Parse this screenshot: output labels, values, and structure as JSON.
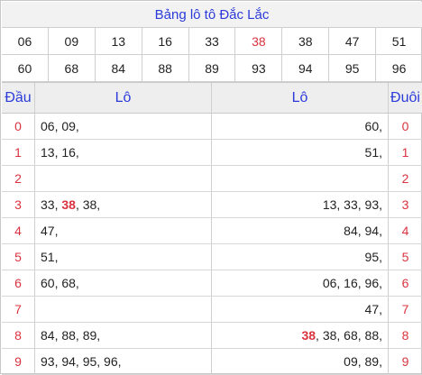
{
  "title": "Bảng lô tô Đắc Lắc",
  "numbers_row1": [
    "06",
    "09",
    "13",
    "16",
    "33",
    "38",
    "38",
    "47",
    "51"
  ],
  "numbers_row1_highlight_index": 5,
  "numbers_row2": [
    "60",
    "68",
    "84",
    "88",
    "89",
    "93",
    "94",
    "95",
    "96"
  ],
  "header": {
    "dau": "Đầu",
    "lo_left": "Lô",
    "lo_right": "Lô",
    "duoi": "Đuôi"
  },
  "rows": [
    {
      "dau": "0",
      "left": [
        {
          "t": "06, 09,"
        }
      ],
      "right": [
        {
          "t": "60,"
        }
      ],
      "duoi": "0"
    },
    {
      "dau": "1",
      "left": [
        {
          "t": "13, 16,"
        }
      ],
      "right": [
        {
          "t": "51,"
        }
      ],
      "duoi": "1"
    },
    {
      "dau": "2",
      "left": [],
      "right": [],
      "duoi": "2"
    },
    {
      "dau": "3",
      "left": [
        {
          "t": "33, "
        },
        {
          "t": "38",
          "hl": true
        },
        {
          "t": ", 38,"
        }
      ],
      "right": [
        {
          "t": "13, 33, 93,"
        }
      ],
      "duoi": "3"
    },
    {
      "dau": "4",
      "left": [
        {
          "t": "47,"
        }
      ],
      "right": [
        {
          "t": "84, 94,"
        }
      ],
      "duoi": "4"
    },
    {
      "dau": "5",
      "left": [
        {
          "t": "51,"
        }
      ],
      "right": [
        {
          "t": "95,"
        }
      ],
      "duoi": "5"
    },
    {
      "dau": "6",
      "left": [
        {
          "t": "60, 68,"
        }
      ],
      "right": [
        {
          "t": "06, 16, 96,"
        }
      ],
      "duoi": "6"
    },
    {
      "dau": "7",
      "left": [],
      "right": [
        {
          "t": "47,"
        }
      ],
      "duoi": "7"
    },
    {
      "dau": "8",
      "left": [
        {
          "t": "84, 88, 89,"
        }
      ],
      "right": [
        {
          "t": "38",
          "hl": true
        },
        {
          "t": ", 38, 68, 88,"
        }
      ],
      "duoi": "8"
    },
    {
      "dau": "9",
      "left": [
        {
          "t": "93, 94, 95, 96,"
        }
      ],
      "right": [
        {
          "t": "09, 89,"
        }
      ],
      "duoi": "9"
    }
  ],
  "colors": {
    "accent_blue": "#2b3bd9",
    "highlight_red": "#d9333f"
  }
}
